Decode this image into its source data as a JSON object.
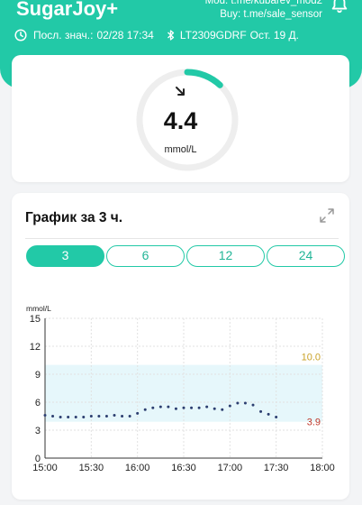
{
  "header": {
    "app_title": "SugarJoy+",
    "mod_line": "Mod: t.me/kubarev_mod2",
    "buy_line": "Buy: t.me/sale_sensor",
    "last_value_label": "Посл. знач.:",
    "last_value_time": "02/28 17:34",
    "sensor_id": "LT2309GDRF",
    "sensor_remaining": "Ост. 19 Д.",
    "accent_color": "#22c9a7"
  },
  "gauge": {
    "value": "4.4",
    "unit": "mmol/L",
    "trend_icon": "arrow-down-right-icon",
    "arc_fraction": 0.12
  },
  "chart_card": {
    "title": "График за 3 ч.",
    "expand_icon": "expand-icon",
    "ranges": [
      "3",
      "6",
      "12",
      "24"
    ],
    "active_range": "3"
  },
  "chart_data": {
    "type": "scatter",
    "ylabel": "mmol/L",
    "ylim": [
      0,
      15
    ],
    "yticks": [
      "0",
      "3",
      "6",
      "9",
      "12",
      "15"
    ],
    "xticks": [
      "15:00",
      "15:30",
      "16:00",
      "16:30",
      "17:00",
      "17:30",
      "18:00"
    ],
    "xlim_minutes": [
      0,
      180
    ],
    "target_range": [
      3.9,
      10.0
    ],
    "target_high_label": "10.0",
    "target_low_label": "3.9",
    "high_color": "#c9a227",
    "low_color": "#c0392b",
    "x_minutes": [
      0,
      5,
      10,
      15,
      20,
      25,
      30,
      35,
      40,
      45,
      50,
      55,
      60,
      65,
      70,
      75,
      80,
      85,
      90,
      95,
      100,
      105,
      110,
      115,
      120,
      125,
      130,
      135,
      140,
      145,
      150
    ],
    "values": [
      4.6,
      4.5,
      4.4,
      4.4,
      4.4,
      4.4,
      4.5,
      4.5,
      4.5,
      4.6,
      4.5,
      4.5,
      4.8,
      5.2,
      5.4,
      5.5,
      5.5,
      5.3,
      5.4,
      5.4,
      5.4,
      5.5,
      5.3,
      5.2,
      5.6,
      5.9,
      5.9,
      5.7,
      5.0,
      4.7,
      4.4
    ]
  }
}
